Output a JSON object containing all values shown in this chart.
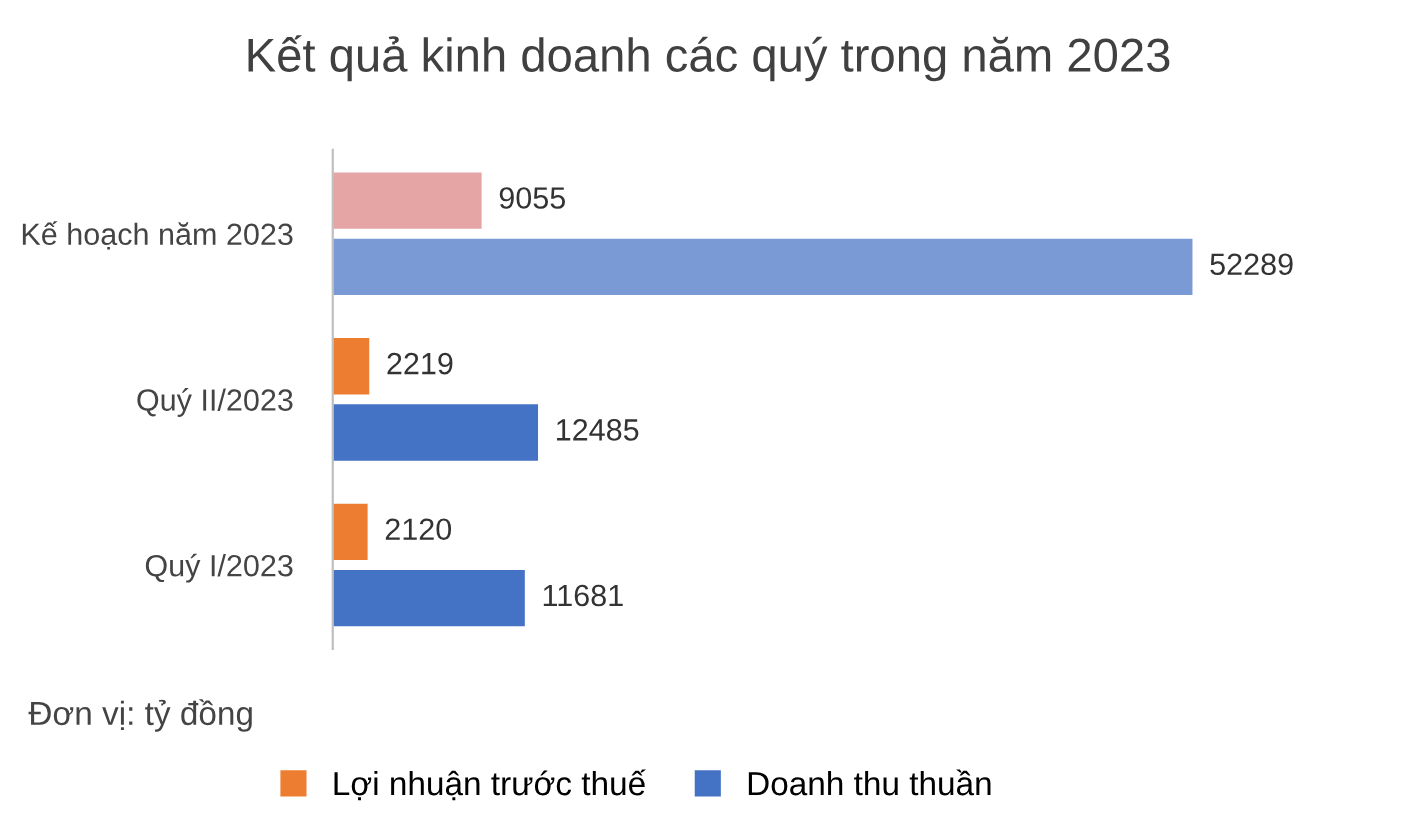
{
  "chart_data": {
    "type": "bar",
    "orientation": "horizontal",
    "title": "Kết quả kinh doanh các quý trong năm 2023",
    "categories": [
      "Kế hoạch năm 2023",
      "Quý II/2023",
      "Quý I/2023"
    ],
    "series": [
      {
        "name": "Lợi nhuận trước thuế",
        "color": "#ed7d31",
        "colors": [
          "#e6a5a5",
          "#ed7d31",
          "#ed7d31"
        ],
        "values": [
          9055,
          2219,
          2120
        ]
      },
      {
        "name": "Doanh thu thuần",
        "color": "#4472c4",
        "colors": [
          "#7a9ad6",
          "#4472c4",
          "#4472c4"
        ],
        "values": [
          52289,
          12485,
          11681
        ]
      }
    ],
    "data_labels": true,
    "legend": "bottom",
    "grid": false,
    "annotations": [
      "Đơn vị: tỷ đồng"
    ]
  }
}
